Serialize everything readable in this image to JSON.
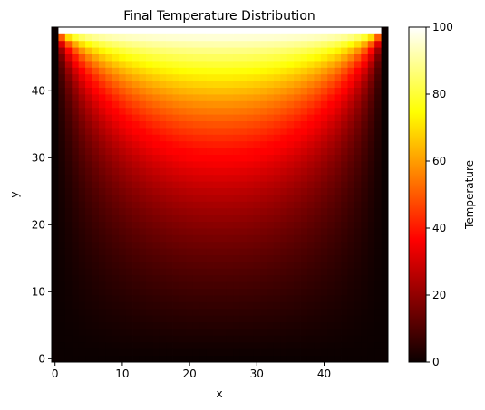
{
  "chart_data": {
    "type": "heatmap",
    "title": "Final Temperature Distribution",
    "xlabel": "x",
    "ylabel": "y",
    "grid_size": [
      50,
      50
    ],
    "xlim": [
      -0.5,
      49.5
    ],
    "ylim": [
      -0.5,
      49.5
    ],
    "x_ticks": [
      0,
      10,
      20,
      30,
      40
    ],
    "y_ticks": [
      0,
      10,
      20,
      30,
      40
    ],
    "colorbar": {
      "label": "Temperature",
      "range": [
        0,
        100
      ],
      "ticks": [
        0,
        20,
        40,
        60,
        80,
        100
      ],
      "colormap": "hot"
    },
    "boundary_conditions": {
      "top_row_y": 49,
      "top_value": 100,
      "left_value": 0,
      "right_value": 0,
      "bottom_value": 0
    },
    "sample_values": {
      "y_48_center": 96,
      "y_45_center": 82,
      "y_40_center": 63,
      "y_35_center": 48,
      "y_30_center": 37,
      "y_25_center": 28,
      "y_20_center": 21,
      "y_10_center": 10,
      "y_0_center": 0
    }
  }
}
